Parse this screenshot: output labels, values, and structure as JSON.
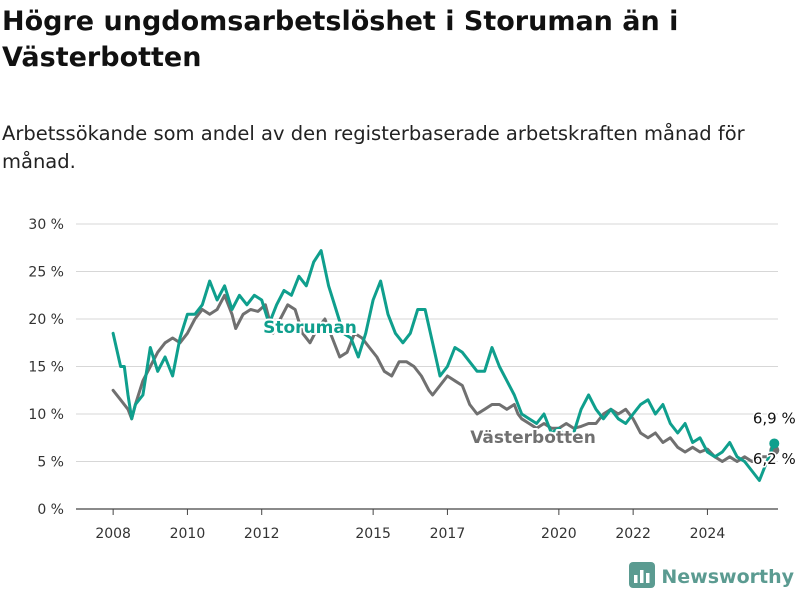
{
  "title": "Högre ungdomsarbetslöshet i Storuman än i Västerbotten",
  "subtitle": "Arbetssökande som andel av den registerbaserade arbetskraften månad för månad.",
  "brand": {
    "name": "Newsworthy",
    "color": "#5b9b91",
    "icon": "newsworthy-bar-chart-icon"
  },
  "chart_data": {
    "type": "line",
    "x_range": [
      2007.0,
      2025.9
    ],
    "x_ticks": [
      {
        "value": 2008,
        "label": "2008"
      },
      {
        "value": 2010,
        "label": "2010"
      },
      {
        "value": 2012,
        "label": "2012"
      },
      {
        "value": 2015,
        "label": "2015"
      },
      {
        "value": 2017,
        "label": "2017"
      },
      {
        "value": 2020,
        "label": "2020"
      },
      {
        "value": 2022,
        "label": "2022"
      },
      {
        "value": 2024,
        "label": "2024"
      }
    ],
    "y_range": [
      0,
      30
    ],
    "y_ticks": [
      {
        "value": 0,
        "label": "0 %"
      },
      {
        "value": 5,
        "label": "5 %"
      },
      {
        "value": 10,
        "label": "10 %"
      },
      {
        "value": 15,
        "label": "15 %"
      },
      {
        "value": 20,
        "label": "20 %"
      },
      {
        "value": 25,
        "label": "25 %"
      },
      {
        "value": 30,
        "label": "30 %"
      }
    ],
    "grid": true,
    "series": [
      {
        "name": "Västerbotten",
        "color": "#707070",
        "end_label": "6,2 %",
        "points": [
          [
            2008.0,
            12.5
          ],
          [
            2008.2,
            11.5
          ],
          [
            2008.4,
            10.5
          ],
          [
            2008.5,
            9.5
          ],
          [
            2008.6,
            11.0
          ],
          [
            2008.8,
            13.5
          ],
          [
            2009.0,
            15.0
          ],
          [
            2009.2,
            16.5
          ],
          [
            2009.4,
            17.5
          ],
          [
            2009.6,
            18.0
          ],
          [
            2009.8,
            17.5
          ],
          [
            2010.0,
            18.5
          ],
          [
            2010.2,
            20.0
          ],
          [
            2010.4,
            21.0
          ],
          [
            2010.6,
            20.5
          ],
          [
            2010.8,
            21.0
          ],
          [
            2011.0,
            22.5
          ],
          [
            2011.2,
            20.5
          ],
          [
            2011.3,
            19.0
          ],
          [
            2011.5,
            20.5
          ],
          [
            2011.7,
            21.0
          ],
          [
            2011.9,
            20.8
          ],
          [
            2012.1,
            21.5
          ],
          [
            2012.3,
            18.5
          ],
          [
            2012.5,
            20.0
          ],
          [
            2012.7,
            21.5
          ],
          [
            2012.9,
            21.0
          ],
          [
            2013.1,
            18.5
          ],
          [
            2013.3,
            17.5
          ],
          [
            2013.5,
            19.0
          ],
          [
            2013.7,
            20.0
          ],
          [
            2013.9,
            18.0
          ],
          [
            2014.1,
            16.0
          ],
          [
            2014.3,
            16.5
          ],
          [
            2014.5,
            18.5
          ],
          [
            2014.7,
            18.0
          ],
          [
            2014.9,
            17.0
          ],
          [
            2015.1,
            16.0
          ],
          [
            2015.3,
            14.5
          ],
          [
            2015.5,
            14.0
          ],
          [
            2015.7,
            15.5
          ],
          [
            2015.9,
            15.5
          ],
          [
            2016.1,
            15.0
          ],
          [
            2016.3,
            14.0
          ],
          [
            2016.5,
            12.5
          ],
          [
            2016.6,
            12.0
          ],
          [
            2016.8,
            13.0
          ],
          [
            2017.0,
            14.0
          ],
          [
            2017.2,
            13.5
          ],
          [
            2017.4,
            13.0
          ],
          [
            2017.6,
            11.0
          ],
          [
            2017.8,
            10.0
          ],
          [
            2018.0,
            10.5
          ],
          [
            2018.2,
            11.0
          ],
          [
            2018.4,
            11.0
          ],
          [
            2018.6,
            10.5
          ],
          [
            2018.8,
            11.0
          ],
          [
            2018.9,
            10.0
          ],
          [
            2019.0,
            9.5
          ],
          [
            2019.2,
            9.0
          ],
          [
            2019.4,
            8.5
          ],
          [
            2019.6,
            9.0
          ],
          [
            2019.8,
            8.5
          ],
          [
            2020.0,
            8.5
          ],
          [
            2020.2,
            9.0
          ],
          [
            2020.4,
            8.5
          ],
          [
            2020.6,
            8.7
          ],
          [
            2020.8,
            9.0
          ],
          [
            2021.0,
            9.0
          ],
          [
            2021.2,
            10.0
          ],
          [
            2021.4,
            10.5
          ],
          [
            2021.6,
            10.0
          ],
          [
            2021.8,
            10.5
          ],
          [
            2022.0,
            9.5
          ],
          [
            2022.2,
            8.0
          ],
          [
            2022.4,
            7.5
          ],
          [
            2022.6,
            8.0
          ],
          [
            2022.8,
            7.0
          ],
          [
            2023.0,
            7.5
          ],
          [
            2023.2,
            6.5
          ],
          [
            2023.4,
            6.0
          ],
          [
            2023.6,
            6.5
          ],
          [
            2023.8,
            6.0
          ],
          [
            2024.0,
            6.3
          ],
          [
            2024.2,
            5.5
          ],
          [
            2024.4,
            5.0
          ],
          [
            2024.6,
            5.5
          ],
          [
            2024.8,
            5.0
          ],
          [
            2025.0,
            5.5
          ],
          [
            2025.2,
            5.0
          ],
          [
            2025.4,
            5.5
          ],
          [
            2025.6,
            5.5
          ],
          [
            2025.8,
            6.2
          ]
        ]
      },
      {
        "name": "Storuman",
        "color": "#0f9f8d",
        "end_label": "6,9 %",
        "points": [
          [
            2008.0,
            18.5
          ],
          [
            2008.2,
            15.0
          ],
          [
            2008.3,
            15.0
          ],
          [
            2008.4,
            12.0
          ],
          [
            2008.5,
            9.5
          ],
          [
            2008.6,
            11.0
          ],
          [
            2008.8,
            12.0
          ],
          [
            2009.0,
            17.0
          ],
          [
            2009.2,
            14.5
          ],
          [
            2009.4,
            16.0
          ],
          [
            2009.6,
            14.0
          ],
          [
            2009.8,
            18.0
          ],
          [
            2010.0,
            20.5
          ],
          [
            2010.2,
            20.5
          ],
          [
            2010.4,
            21.5
          ],
          [
            2010.6,
            24.0
          ],
          [
            2010.8,
            22.0
          ],
          [
            2011.0,
            23.5
          ],
          [
            2011.2,
            21.0
          ],
          [
            2011.4,
            22.5
          ],
          [
            2011.6,
            21.5
          ],
          [
            2011.8,
            22.5
          ],
          [
            2012.0,
            22.0
          ],
          [
            2012.2,
            19.5
          ],
          [
            2012.4,
            21.5
          ],
          [
            2012.6,
            23.0
          ],
          [
            2012.8,
            22.5
          ],
          [
            2013.0,
            24.5
          ],
          [
            2013.2,
            23.5
          ],
          [
            2013.4,
            26.0
          ],
          [
            2013.6,
            27.2
          ],
          [
            2013.8,
            23.5
          ],
          [
            2014.0,
            21.0
          ],
          [
            2014.2,
            18.5
          ],
          [
            2014.4,
            18.0
          ],
          [
            2014.6,
            16.0
          ],
          [
            2014.8,
            18.5
          ],
          [
            2015.0,
            22.0
          ],
          [
            2015.2,
            24.0
          ],
          [
            2015.4,
            20.5
          ],
          [
            2015.6,
            18.5
          ],
          [
            2015.8,
            17.5
          ],
          [
            2016.0,
            18.5
          ],
          [
            2016.2,
            21.0
          ],
          [
            2016.4,
            21.0
          ],
          [
            2016.6,
            17.5
          ],
          [
            2016.8,
            14.0
          ],
          [
            2017.0,
            15.0
          ],
          [
            2017.2,
            17.0
          ],
          [
            2017.4,
            16.5
          ],
          [
            2017.6,
            15.5
          ],
          [
            2017.8,
            14.5
          ],
          [
            2018.0,
            14.5
          ],
          [
            2018.2,
            17.0
          ],
          [
            2018.4,
            15.0
          ],
          [
            2018.6,
            13.5
          ],
          [
            2018.8,
            12.0
          ],
          [
            2019.0,
            10.0
          ],
          [
            2019.2,
            9.5
          ],
          [
            2019.4,
            9.0
          ],
          [
            2019.6,
            10.0
          ],
          [
            2019.8,
            8.0
          ],
          [
            2020.0,
            8.5
          ],
          [
            2020.2,
            7.5
          ],
          [
            2020.4,
            8.0
          ],
          [
            2020.6,
            10.5
          ],
          [
            2020.8,
            12.0
          ],
          [
            2021.0,
            10.5
          ],
          [
            2021.2,
            9.5
          ],
          [
            2021.4,
            10.5
          ],
          [
            2021.6,
            9.5
          ],
          [
            2021.8,
            9.0
          ],
          [
            2022.0,
            10.0
          ],
          [
            2022.2,
            11.0
          ],
          [
            2022.4,
            11.5
          ],
          [
            2022.6,
            10.0
          ],
          [
            2022.8,
            11.0
          ],
          [
            2023.0,
            9.0
          ],
          [
            2023.2,
            8.0
          ],
          [
            2023.4,
            9.0
          ],
          [
            2023.6,
            7.0
          ],
          [
            2023.8,
            7.5
          ],
          [
            2024.0,
            6.0
          ],
          [
            2024.2,
            5.5
          ],
          [
            2024.4,
            6.0
          ],
          [
            2024.6,
            7.0
          ],
          [
            2024.8,
            5.5
          ],
          [
            2025.0,
            5.0
          ],
          [
            2025.2,
            4.0
          ],
          [
            2025.4,
            3.0
          ],
          [
            2025.6,
            5.0
          ],
          [
            2025.8,
            6.9
          ]
        ]
      }
    ],
    "series_labels": [
      {
        "series": "Storuman",
        "text": "Storuman"
      },
      {
        "series": "Västerbotten",
        "text": "Västerbotten"
      }
    ]
  }
}
